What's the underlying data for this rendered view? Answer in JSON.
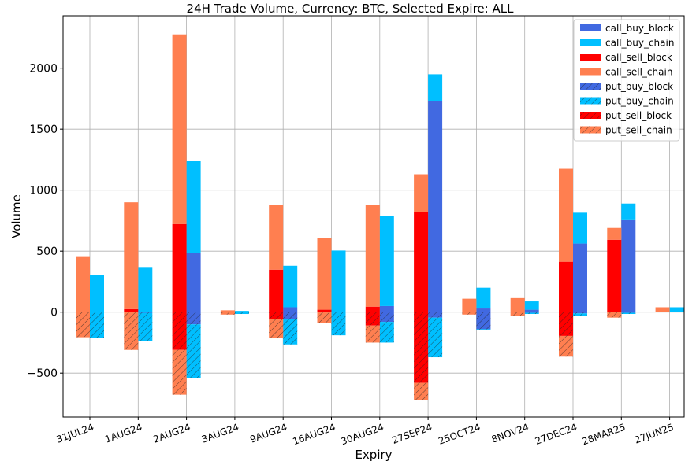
{
  "chart_data": {
    "type": "bar",
    "title": "24H Trade Volume, Currency: BTC, Selected Expire: ALL",
    "xlabel": "Expiry",
    "ylabel": "Volume",
    "ylim": [
      -860,
      2430
    ],
    "yticks": [
      -500,
      0,
      500,
      1000,
      1500,
      2000
    ],
    "ytick_labels": [
      "−500",
      "0",
      "500",
      "1000",
      "1500",
      "2000"
    ],
    "grid": true,
    "legend_position": "top-right",
    "categories": [
      "31JUL24",
      "1AUG24",
      "2AUG24",
      "3AUG24",
      "9AUG24",
      "16AUG24",
      "30AUG24",
      "27SEP24",
      "25OCT24",
      "8NOV24",
      "27DEC24",
      "28MAR25",
      "27JUN25"
    ],
    "series": [
      {
        "name": "call_buy_block",
        "color": "#4169e1",
        "hatch": false,
        "side": "right",
        "values": [
          0,
          0,
          484,
          0,
          40,
          0,
          50,
          1730,
          30,
          20,
          562,
          760,
          0
        ]
      },
      {
        "name": "call_buy_chain",
        "color": "#00bfff",
        "hatch": false,
        "side": "right",
        "values": [
          305,
          370,
          756,
          10,
          340,
          505,
          737,
          220,
          170,
          68,
          253,
          130,
          40
        ]
      },
      {
        "name": "call_sell_block",
        "color": "#ff0000",
        "hatch": false,
        "side": "left",
        "values": [
          0,
          25,
          722,
          0,
          348,
          20,
          45,
          820,
          0,
          0,
          413,
          593,
          0
        ]
      },
      {
        "name": "call_sell_chain",
        "color": "#ff7f50",
        "hatch": false,
        "side": "left",
        "values": [
          452,
          875,
          1555,
          15,
          529,
          586,
          835,
          310,
          110,
          115,
          762,
          97,
          40
        ]
      },
      {
        "name": "put_buy_block",
        "color": "#4169e1",
        "hatch": true,
        "side": "right",
        "values": [
          0,
          -5,
          -100,
          0,
          -60,
          0,
          -80,
          -45,
          -140,
          -5,
          -10,
          -5,
          0
        ]
      },
      {
        "name": "put_buy_chain",
        "color": "#00bfff",
        "hatch": true,
        "side": "right",
        "values": [
          -210,
          -235,
          -442,
          -15,
          -205,
          -190,
          -170,
          -325,
          -10,
          -10,
          -20,
          -10,
          0
        ]
      },
      {
        "name": "put_sell_block",
        "color": "#ff0000",
        "hatch": true,
        "side": "left",
        "values": [
          0,
          0,
          -310,
          0,
          -60,
          0,
          -110,
          -580,
          0,
          0,
          -195,
          0,
          0
        ]
      },
      {
        "name": "put_sell_chain",
        "color": "#ff7f50",
        "hatch": true,
        "side": "left",
        "values": [
          -206,
          -310,
          -367,
          -20,
          -155,
          -90,
          -140,
          -140,
          -20,
          -30,
          -170,
          -45,
          0
        ]
      }
    ]
  }
}
